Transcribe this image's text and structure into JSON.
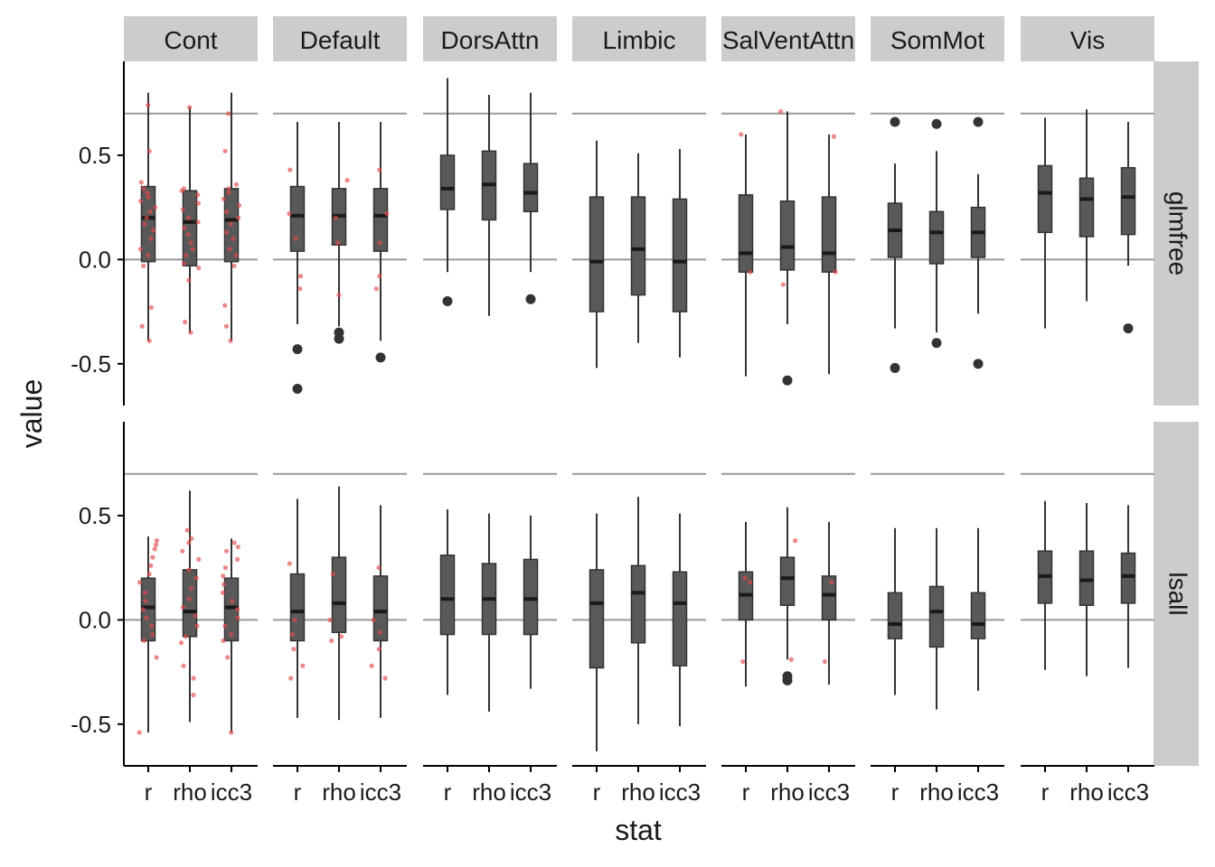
{
  "chart_data": {
    "type": "boxplot-faceted",
    "xlabel": "stat",
    "ylabel": "value",
    "x_categories": [
      "r",
      "rho",
      "icc3"
    ],
    "columns": [
      "Cont",
      "Default",
      "DorsAttn",
      "Limbic",
      "SalVentAttn",
      "SomMot",
      "Vis"
    ],
    "rows": [
      "glmfree",
      "lsall"
    ],
    "y_ticks": [
      -0.5,
      0.0,
      0.5
    ],
    "y_tick_labels": [
      "-0.5",
      "0.0",
      "0.5"
    ],
    "ylim": [
      -0.7,
      0.95
    ],
    "reference_lines": [
      0.0,
      0.7
    ],
    "colors": {
      "strip": "#cccccc",
      "box": "#595959",
      "line": "#333333",
      "refline": "#999999",
      "jitter": "#e34a4a"
    },
    "panels": [
      {
        "row": "glmfree",
        "col": "Cont",
        "boxes": [
          {
            "stat": "r",
            "lower_whisker": -0.39,
            "q1": -0.01,
            "median": 0.2,
            "q3": 0.35,
            "upper_whisker": 0.8,
            "outliers": [],
            "points": [
              0.74,
              0.52,
              0.37,
              0.34,
              0.32,
              0.3,
              0.28,
              0.25,
              0.23,
              0.2,
              0.17,
              0.14,
              0.1,
              0.05,
              0.02,
              -0.03,
              -0.23,
              -0.32,
              -0.39
            ]
          },
          {
            "stat": "rho",
            "lower_whisker": -0.35,
            "q1": -0.03,
            "median": 0.18,
            "q3": 0.33,
            "upper_whisker": 0.73,
            "outliers": [],
            "points": [
              0.73,
              0.34,
              0.33,
              0.31,
              0.27,
              0.24,
              0.2,
              0.18,
              0.15,
              0.12,
              0.08,
              0.05,
              0.02,
              -0.02,
              -0.04,
              -0.1,
              -0.3,
              -0.35
            ]
          },
          {
            "stat": "icc3",
            "lower_whisker": -0.39,
            "q1": -0.01,
            "median": 0.19,
            "q3": 0.34,
            "upper_whisker": 0.8,
            "outliers": [],
            "points": [
              0.7,
              0.52,
              0.36,
              0.34,
              0.32,
              0.29,
              0.26,
              0.23,
              0.2,
              0.17,
              0.13,
              0.1,
              0.05,
              0.02,
              -0.03,
              -0.22,
              -0.32,
              -0.39
            ]
          }
        ]
      },
      {
        "row": "glmfree",
        "col": "Default",
        "boxes": [
          {
            "stat": "r",
            "lower_whisker": -0.31,
            "q1": 0.04,
            "median": 0.21,
            "q3": 0.35,
            "upper_whisker": 0.66,
            "outliers": [
              -0.43,
              -0.62
            ],
            "points": [
              0.43,
              0.22,
              0.1,
              -0.08,
              -0.14
            ]
          },
          {
            "stat": "rho",
            "lower_whisker": -0.32,
            "q1": 0.07,
            "median": 0.21,
            "q3": 0.34,
            "upper_whisker": 0.66,
            "outliers": [
              -0.35,
              -0.38
            ],
            "points": [
              0.38,
              0.2,
              0.08,
              -0.17
            ]
          },
          {
            "stat": "icc3",
            "lower_whisker": -0.39,
            "q1": 0.04,
            "median": 0.21,
            "q3": 0.34,
            "upper_whisker": 0.66,
            "outliers": [
              -0.47
            ],
            "points": [
              0.43,
              0.22,
              0.08,
              -0.08,
              -0.14
            ]
          }
        ]
      },
      {
        "row": "glmfree",
        "col": "DorsAttn",
        "boxes": [
          {
            "stat": "r",
            "lower_whisker": -0.06,
            "q1": 0.24,
            "median": 0.34,
            "q3": 0.5,
            "upper_whisker": 0.87,
            "outliers": [
              -0.2
            ],
            "points": []
          },
          {
            "stat": "rho",
            "lower_whisker": -0.27,
            "q1": 0.19,
            "median": 0.36,
            "q3": 0.52,
            "upper_whisker": 0.79,
            "outliers": [],
            "points": []
          },
          {
            "stat": "icc3",
            "lower_whisker": -0.06,
            "q1": 0.23,
            "median": 0.32,
            "q3": 0.46,
            "upper_whisker": 0.8,
            "outliers": [
              -0.19
            ],
            "points": []
          }
        ]
      },
      {
        "row": "glmfree",
        "col": "Limbic",
        "boxes": [
          {
            "stat": "r",
            "lower_whisker": -0.52,
            "q1": -0.25,
            "median": -0.01,
            "q3": 0.3,
            "upper_whisker": 0.57,
            "outliers": [],
            "points": []
          },
          {
            "stat": "rho",
            "lower_whisker": -0.4,
            "q1": -0.17,
            "median": 0.05,
            "q3": 0.3,
            "upper_whisker": 0.51,
            "outliers": [],
            "points": []
          },
          {
            "stat": "icc3",
            "lower_whisker": -0.47,
            "q1": -0.25,
            "median": -0.01,
            "q3": 0.29,
            "upper_whisker": 0.53,
            "outliers": [],
            "points": []
          }
        ]
      },
      {
        "row": "glmfree",
        "col": "SalVentAttn",
        "boxes": [
          {
            "stat": "r",
            "lower_whisker": -0.56,
            "q1": -0.06,
            "median": 0.03,
            "q3": 0.31,
            "upper_whisker": 0.6,
            "outliers": [],
            "points": [
              0.6,
              -0.06
            ]
          },
          {
            "stat": "rho",
            "lower_whisker": -0.31,
            "q1": -0.05,
            "median": 0.06,
            "q3": 0.28,
            "upper_whisker": 0.71,
            "outliers": [
              -0.58
            ],
            "points": [
              0.71,
              -0.12
            ]
          },
          {
            "stat": "icc3",
            "lower_whisker": -0.55,
            "q1": -0.06,
            "median": 0.03,
            "q3": 0.3,
            "upper_whisker": 0.6,
            "outliers": [],
            "points": [
              0.59,
              -0.06
            ]
          }
        ]
      },
      {
        "row": "glmfree",
        "col": "SomMot",
        "boxes": [
          {
            "stat": "r",
            "lower_whisker": -0.33,
            "q1": 0.01,
            "median": 0.14,
            "q3": 0.27,
            "upper_whisker": 0.46,
            "outliers": [
              0.66,
              -0.52
            ],
            "points": []
          },
          {
            "stat": "rho",
            "lower_whisker": -0.35,
            "q1": -0.02,
            "median": 0.13,
            "q3": 0.23,
            "upper_whisker": 0.52,
            "outliers": [
              0.65,
              -0.4
            ],
            "points": []
          },
          {
            "stat": "icc3",
            "lower_whisker": -0.26,
            "q1": 0.01,
            "median": 0.13,
            "q3": 0.25,
            "upper_whisker": 0.41,
            "outliers": [
              0.66,
              -0.5
            ],
            "points": []
          }
        ]
      },
      {
        "row": "glmfree",
        "col": "Vis",
        "boxes": [
          {
            "stat": "r",
            "lower_whisker": -0.33,
            "q1": 0.13,
            "median": 0.32,
            "q3": 0.45,
            "upper_whisker": 0.68,
            "outliers": [],
            "points": []
          },
          {
            "stat": "rho",
            "lower_whisker": -0.2,
            "q1": 0.11,
            "median": 0.29,
            "q3": 0.39,
            "upper_whisker": 0.72,
            "outliers": [],
            "points": []
          },
          {
            "stat": "icc3",
            "lower_whisker": -0.03,
            "q1": 0.12,
            "median": 0.3,
            "q3": 0.44,
            "upper_whisker": 0.66,
            "outliers": [
              -0.33
            ],
            "points": []
          }
        ]
      },
      {
        "row": "lsall",
        "col": "Cont",
        "boxes": [
          {
            "stat": "r",
            "lower_whisker": -0.54,
            "q1": -0.1,
            "median": 0.06,
            "q3": 0.2,
            "upper_whisker": 0.4,
            "outliers": [],
            "points": [
              0.38,
              0.36,
              0.34,
              0.3,
              0.26,
              0.22,
              0.18,
              0.13,
              0.09,
              0.05,
              0.01,
              -0.03,
              -0.07,
              -0.1,
              -0.18,
              -0.54
            ]
          },
          {
            "stat": "rho",
            "lower_whisker": -0.49,
            "q1": -0.08,
            "median": 0.04,
            "q3": 0.24,
            "upper_whisker": 0.62,
            "outliers": [],
            "points": [
              0.43,
              0.39,
              0.37,
              0.33,
              0.29,
              0.24,
              0.2,
              0.15,
              0.1,
              0.06,
              0.02,
              -0.03,
              -0.08,
              -0.11,
              -0.22,
              -0.28,
              -0.36
            ]
          },
          {
            "stat": "icc3",
            "lower_whisker": -0.54,
            "q1": -0.1,
            "median": 0.06,
            "q3": 0.2,
            "upper_whisker": 0.39,
            "outliers": [],
            "points": [
              0.37,
              0.35,
              0.33,
              0.29,
              0.25,
              0.21,
              0.17,
              0.13,
              0.09,
              0.05,
              0.01,
              -0.03,
              -0.07,
              -0.1,
              -0.18,
              -0.54
            ]
          }
        ]
      },
      {
        "row": "lsall",
        "col": "Default",
        "boxes": [
          {
            "stat": "r",
            "lower_whisker": -0.47,
            "q1": -0.1,
            "median": 0.04,
            "q3": 0.22,
            "upper_whisker": 0.58,
            "outliers": [],
            "points": [
              0.27,
              0.0,
              -0.07,
              -0.14,
              -0.22,
              -0.28
            ]
          },
          {
            "stat": "rho",
            "lower_whisker": -0.48,
            "q1": -0.06,
            "median": 0.08,
            "q3": 0.3,
            "upper_whisker": 0.64,
            "outliers": [],
            "points": [
              0.22,
              0.0,
              -0.08,
              -0.1
            ]
          },
          {
            "stat": "icc3",
            "lower_whisker": -0.47,
            "q1": -0.1,
            "median": 0.04,
            "q3": 0.21,
            "upper_whisker": 0.55,
            "outliers": [],
            "points": [
              0.25,
              0.0,
              -0.06,
              -0.14,
              -0.22,
              -0.28
            ]
          }
        ]
      },
      {
        "row": "lsall",
        "col": "DorsAttn",
        "boxes": [
          {
            "stat": "r",
            "lower_whisker": -0.36,
            "q1": -0.07,
            "median": 0.1,
            "q3": 0.31,
            "upper_whisker": 0.53,
            "outliers": [],
            "points": []
          },
          {
            "stat": "rho",
            "lower_whisker": -0.44,
            "q1": -0.07,
            "median": 0.1,
            "q3": 0.27,
            "upper_whisker": 0.51,
            "outliers": [],
            "points": []
          },
          {
            "stat": "icc3",
            "lower_whisker": -0.33,
            "q1": -0.07,
            "median": 0.1,
            "q3": 0.29,
            "upper_whisker": 0.5,
            "outliers": [],
            "points": []
          }
        ]
      },
      {
        "row": "lsall",
        "col": "Limbic",
        "boxes": [
          {
            "stat": "r",
            "lower_whisker": -0.63,
            "q1": -0.23,
            "median": 0.08,
            "q3": 0.24,
            "upper_whisker": 0.51,
            "outliers": [],
            "points": []
          },
          {
            "stat": "rho",
            "lower_whisker": -0.5,
            "q1": -0.11,
            "median": 0.13,
            "q3": 0.26,
            "upper_whisker": 0.59,
            "outliers": [],
            "points": []
          },
          {
            "stat": "icc3",
            "lower_whisker": -0.51,
            "q1": -0.22,
            "median": 0.08,
            "q3": 0.23,
            "upper_whisker": 0.51,
            "outliers": [],
            "points": []
          }
        ]
      },
      {
        "row": "lsall",
        "col": "SalVentAttn",
        "boxes": [
          {
            "stat": "r",
            "lower_whisker": -0.32,
            "q1": 0.0,
            "median": 0.12,
            "q3": 0.23,
            "upper_whisker": 0.47,
            "outliers": [],
            "points": [
              0.2,
              0.18,
              -0.2
            ]
          },
          {
            "stat": "rho",
            "lower_whisker": -0.19,
            "q1": 0.07,
            "median": 0.2,
            "q3": 0.3,
            "upper_whisker": 0.54,
            "outliers": [
              -0.27,
              -0.29
            ],
            "points": [
              0.38,
              -0.19
            ]
          },
          {
            "stat": "icc3",
            "lower_whisker": -0.31,
            "q1": 0.0,
            "median": 0.12,
            "q3": 0.21,
            "upper_whisker": 0.47,
            "outliers": [],
            "points": [
              0.18,
              -0.2
            ]
          }
        ]
      },
      {
        "row": "lsall",
        "col": "SomMot",
        "boxes": [
          {
            "stat": "r",
            "lower_whisker": -0.36,
            "q1": -0.09,
            "median": -0.02,
            "q3": 0.13,
            "upper_whisker": 0.44,
            "outliers": [],
            "points": []
          },
          {
            "stat": "rho",
            "lower_whisker": -0.43,
            "q1": -0.13,
            "median": 0.04,
            "q3": 0.16,
            "upper_whisker": 0.44,
            "outliers": [],
            "points": []
          },
          {
            "stat": "icc3",
            "lower_whisker": -0.34,
            "q1": -0.09,
            "median": -0.02,
            "q3": 0.13,
            "upper_whisker": 0.44,
            "outliers": [],
            "points": []
          }
        ]
      },
      {
        "row": "lsall",
        "col": "Vis",
        "boxes": [
          {
            "stat": "r",
            "lower_whisker": -0.24,
            "q1": 0.08,
            "median": 0.21,
            "q3": 0.33,
            "upper_whisker": 0.57,
            "outliers": [],
            "points": []
          },
          {
            "stat": "rho",
            "lower_whisker": -0.27,
            "q1": 0.07,
            "median": 0.19,
            "q3": 0.33,
            "upper_whisker": 0.56,
            "outliers": [],
            "points": []
          },
          {
            "stat": "icc3",
            "lower_whisker": -0.23,
            "q1": 0.08,
            "median": 0.21,
            "q3": 0.32,
            "upper_whisker": 0.55,
            "outliers": [],
            "points": []
          }
        ]
      }
    ]
  }
}
